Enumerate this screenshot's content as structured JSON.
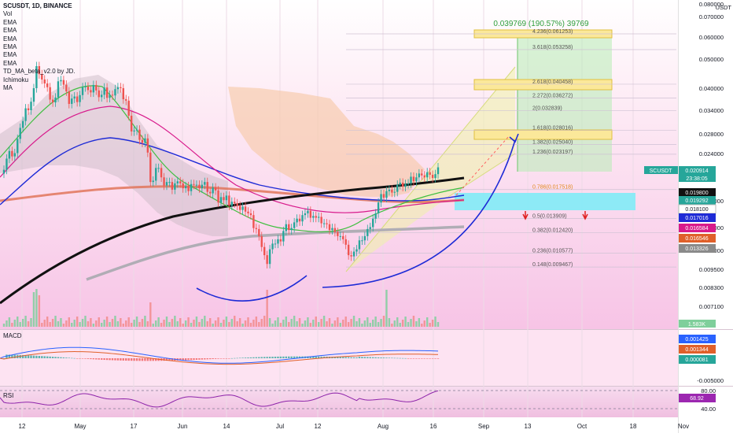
{
  "header": {
    "symbol_line": "SCUSDT, 1D, BINANCE",
    "indicators": [
      "Vol",
      "EMA",
      "EMA",
      "EMA",
      "EMA",
      "EMA",
      "EMA",
      "TD_MA_beta_v2.0 by JD.",
      "Ichimoku",
      "MA"
    ]
  },
  "price_axis": {
    "unit": "USDT",
    "labels": [
      "0.080000",
      "0.070000",
      "0.060000",
      "0.050000",
      "0.040000",
      "0.034000",
      "0.028000",
      "0.024000",
      "0.018000",
      "0.015000",
      "0.011000",
      "0.009500",
      "0.008300",
      "0.007100"
    ],
    "tags": [
      {
        "symbol": "SCUSDT",
        "value": "0.020914",
        "countdown": "23:38:05",
        "color": "#26a69a"
      },
      {
        "value": "0.019800",
        "color": "#111111"
      },
      {
        "value": "0.019292",
        "color": "#26a69a"
      },
      {
        "value": "0.018100",
        "color": "#ffffff"
      },
      {
        "value": "0.017016",
        "color": "#1e2bd6"
      },
      {
        "value": "0.016584",
        "color": "#d81b8c"
      },
      {
        "value": "0.016546",
        "color": "#e0602a"
      },
      {
        "value": "0.013326",
        "color": "#8a8a8a"
      }
    ],
    "vol_tag": "1.583K"
  },
  "projection": {
    "label": "0.039769 (190.57%) 39769"
  },
  "fib_levels": [
    {
      "ratio": "4.236",
      "value": "0.061253",
      "label": "4.236(0.061253)"
    },
    {
      "ratio": "3.618",
      "value": "0.053258",
      "label": "3.618(0.053258)"
    },
    {
      "ratio": "2.618",
      "value": "0.040458",
      "label": "2.618(0.040458)"
    },
    {
      "ratio": "2.272",
      "value": "0.036272",
      "label": "2.272(0.036272)"
    },
    {
      "ratio": "2",
      "value": "0.032839",
      "label": "2(0.032839)"
    },
    {
      "ratio": "1.618",
      "value": "0.028016",
      "label": "1.618(0.028016)"
    },
    {
      "ratio": "1.382",
      "value": "0.025040",
      "label": "1.382(0.025040)"
    },
    {
      "ratio": "1.236",
      "value": "0.023197",
      "label": "1.236(0.023197)"
    },
    {
      "ratio": "0.786",
      "value": "0.017518",
      "label": "0.786(0.017518)"
    },
    {
      "ratio": "0.5",
      "value": "0.013909",
      "label": "0.5(0.013909)"
    },
    {
      "ratio": "0.382",
      "value": "0.012420",
      "label": "0.382(0.012420)"
    },
    {
      "ratio": "0.236",
      "value": "0.010577",
      "label": "0.236(0.010577)"
    },
    {
      "ratio": "0.148",
      "value": "0.009467",
      "label": "0.148(0.009467)"
    }
  ],
  "macd": {
    "label": "MACD",
    "tags": [
      {
        "value": "0.001425",
        "color": "#2962ff"
      },
      {
        "value": "0.001344",
        "color": "#e0602a"
      },
      {
        "value": "0.000081",
        "color": "#26a69a"
      }
    ],
    "axis_label": "-0.005000"
  },
  "rsi": {
    "label": "RSI",
    "axis_labels": [
      "80.00",
      "40.00"
    ],
    "tag": "68.92"
  },
  "time_axis": [
    "12",
    "May",
    "17",
    "Jun",
    "14",
    "Jul",
    "12",
    "Aug",
    "16",
    "Sep",
    "13",
    "Oct",
    "18",
    "Nov"
  ],
  "chart_data": {
    "type": "candlestick",
    "title": "SCUSDT, 1D, BINANCE",
    "xlabel": "",
    "ylabel": "USDT",
    "scale": "log",
    "ylim": [
      0.0065,
      0.08
    ],
    "x_range": [
      "2021-04-05",
      "2021-11-08"
    ],
    "grid": true,
    "closes": [
      0.0205,
      0.0224,
      0.0238,
      0.0228,
      0.0234,
      0.0262,
      0.0286,
      0.0302,
      0.0334,
      0.0329,
      0.0352,
      0.0392,
      0.0467,
      0.0438,
      0.042,
      0.0407,
      0.0395,
      0.0358,
      0.035,
      0.0364,
      0.0414,
      0.0418,
      0.0403,
      0.0382,
      0.0346,
      0.0361,
      0.0367,
      0.0351,
      0.0371,
      0.0395,
      0.0397,
      0.0386,
      0.0379,
      0.0402,
      0.0385,
      0.0365,
      0.0372,
      0.0394,
      0.0363,
      0.0372,
      0.037,
      0.0389,
      0.0395,
      0.0392,
      0.0359,
      0.0355,
      0.0315,
      0.0278,
      0.028,
      0.0282,
      0.026,
      0.0254,
      0.0263,
      0.0235,
      0.0186,
      0.0188,
      0.0208,
      0.0208,
      0.0193,
      0.0181,
      0.0186,
      0.0186,
      0.0175,
      0.0184,
      0.0187,
      0.0184,
      0.0177,
      0.018,
      0.0173,
      0.0183,
      0.0182,
      0.0182,
      0.0177,
      0.0182,
      0.0186,
      0.0172,
      0.017,
      0.0178,
      0.0174,
      0.0158,
      0.0165,
      0.0161,
      0.0167,
      0.0154,
      0.0159,
      0.0157,
      0.0154,
      0.0149,
      0.0153,
      0.0147,
      0.0145,
      0.0143,
      0.0129,
      0.0128,
      0.0121,
      0.0111,
      0.0104,
      0.0097,
      0.0109,
      0.0114,
      0.0114,
      0.0118,
      0.0116,
      0.0126,
      0.0133,
      0.0127,
      0.0129,
      0.0135,
      0.0139,
      0.0136,
      0.0143,
      0.0145,
      0.0148,
      0.014,
      0.0142,
      0.014,
      0.0141,
      0.0134,
      0.0134,
      0.0133,
      0.0127,
      0.0129,
      0.0125,
      0.0121,
      0.0121,
      0.0118,
      0.0113,
      0.0104,
      0.0103,
      0.0107,
      0.0109,
      0.0117,
      0.0117,
      0.0121,
      0.0128,
      0.013,
      0.0139,
      0.0145,
      0.0158,
      0.0169,
      0.0164,
      0.0173,
      0.0175,
      0.0171,
      0.0172,
      0.0182,
      0.0185,
      0.0179,
      0.0183,
      0.0184,
      0.0194,
      0.0187,
      0.0193,
      0.0199,
      0.0196,
      0.0193,
      0.0201,
      0.0197,
      0.0192,
      0.0198,
      0.0209
    ],
    "projection_target": 0.039769,
    "projection_pct": 190.57
  }
}
